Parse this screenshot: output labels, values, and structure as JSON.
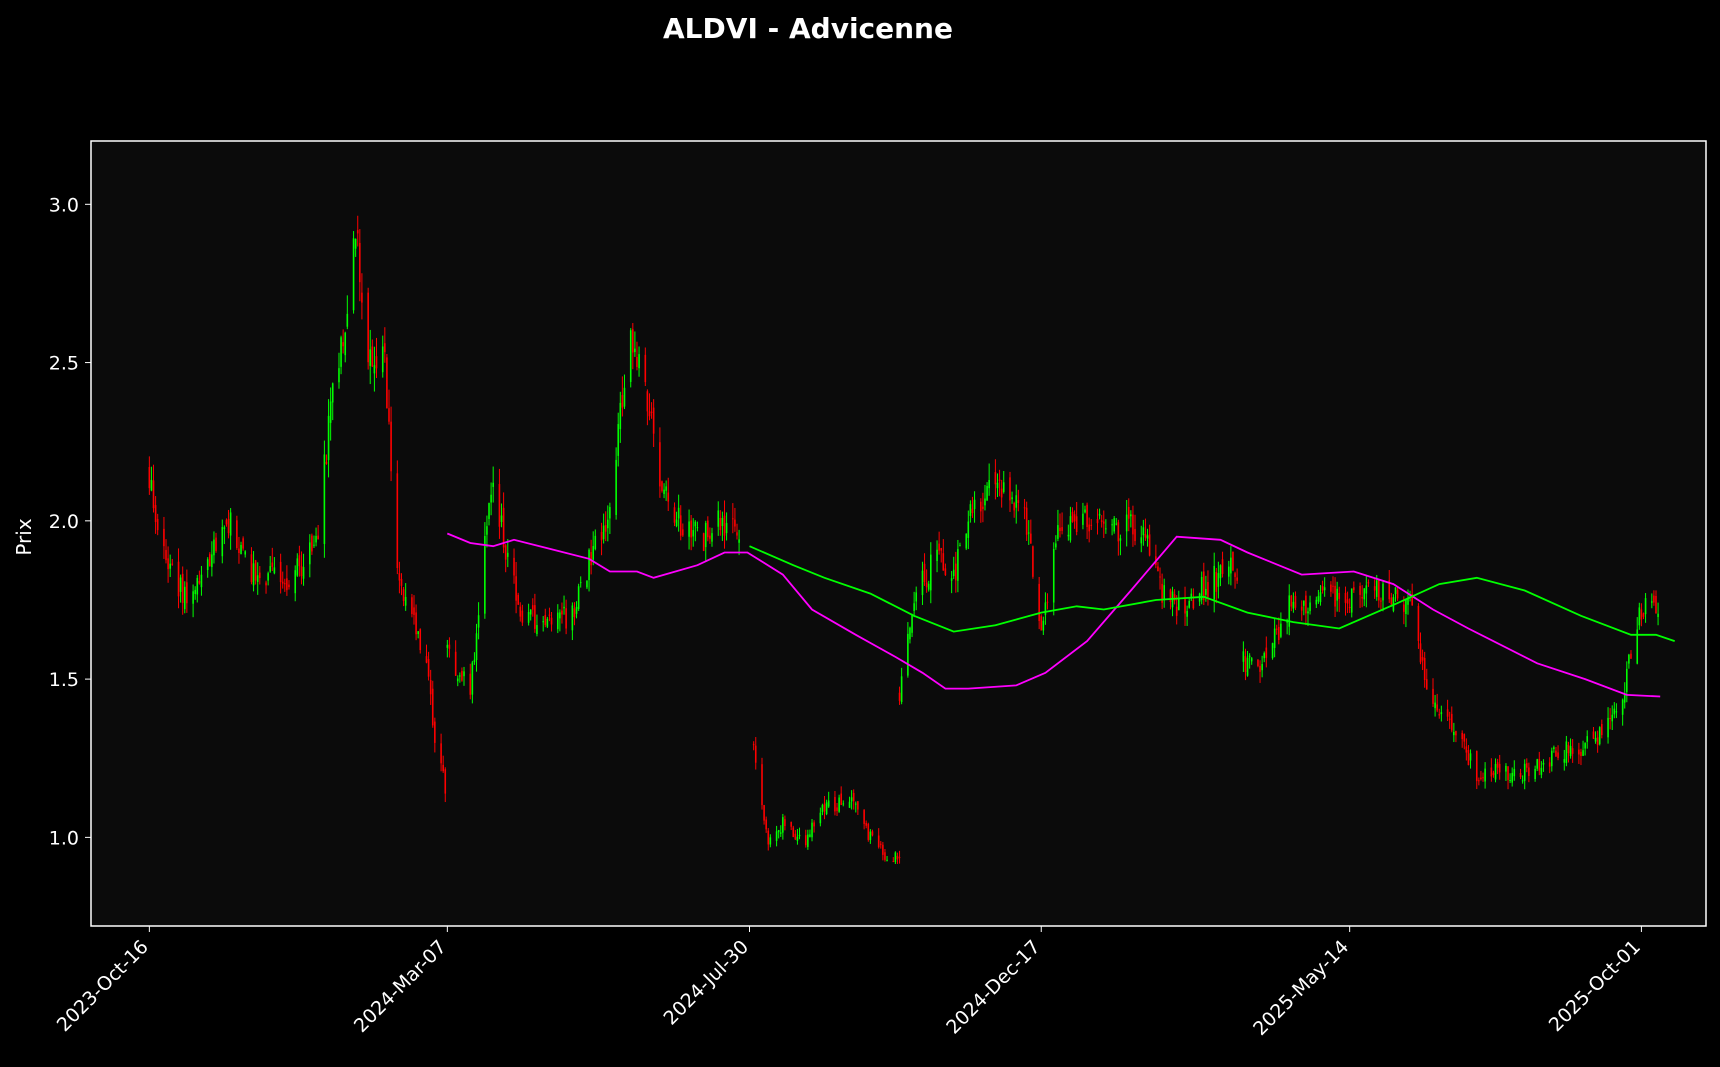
{
  "chart_data": {
    "type": "candlestick",
    "title": "ALDVI - Advicenne",
    "xlabel": "",
    "ylabel": "Prix",
    "ylim": [
      0.72,
      3.2
    ],
    "xlim": [
      "2023-09-18",
      "2025-11-01"
    ],
    "grid": false,
    "x_ticks": [
      {
        "date": "2023-10-16",
        "label": "2023-Oct-16"
      },
      {
        "date": "2024-03-07",
        "label": "2024-Mar-07"
      },
      {
        "date": "2024-07-30",
        "label": "2024-Jul-30"
      },
      {
        "date": "2024-12-17",
        "label": "2024-Dec-17"
      },
      {
        "date": "2025-05-14",
        "label": "2025-May-14"
      },
      {
        "date": "2025-10-01",
        "label": "2025-Oct-01"
      }
    ],
    "y_ticks": [
      {
        "value": 1.0,
        "label": "1.0"
      },
      {
        "value": 1.5,
        "label": "1.5"
      },
      {
        "value": 2.0,
        "label": "2.0"
      },
      {
        "value": 2.5,
        "label": "2.5"
      },
      {
        "value": 3.0,
        "label": "3.0"
      }
    ],
    "colors": {
      "up": "#00ff00",
      "down": "#ff0000",
      "ma_green": "#00ff00",
      "ma_magenta": "#ff00ff",
      "axes_bg": "#0b0b0b",
      "figure_bg": "#000000"
    },
    "segments": [
      {
        "start": "2023-10-16",
        "end": "2024-03-06",
        "anchors": [
          [
            "2023-10-16",
            2.15
          ],
          [
            "2023-10-23",
            1.88
          ],
          [
            "2023-11-03",
            1.74
          ],
          [
            "2023-11-13",
            1.85
          ],
          [
            "2023-11-22",
            2.02
          ],
          [
            "2023-12-01",
            1.86
          ],
          [
            "2023-12-12",
            1.82
          ],
          [
            "2023-12-22",
            1.8
          ],
          [
            "2024-01-05",
            1.95
          ],
          [
            "2024-01-12",
            2.45
          ],
          [
            "2024-01-17",
            2.6
          ],
          [
            "2024-01-23",
            2.92
          ],
          [
            "2024-01-29",
            2.55
          ],
          [
            "2024-02-06",
            2.5
          ],
          [
            "2024-02-12",
            1.85
          ],
          [
            "2024-02-20",
            1.68
          ],
          [
            "2024-02-26",
            1.55
          ],
          [
            "2024-03-01",
            1.32
          ],
          [
            "2024-03-06",
            1.16
          ]
        ]
      },
      {
        "start": "2024-03-07",
        "end": "2024-07-25",
        "anchors": [
          [
            "2024-03-07",
            1.6
          ],
          [
            "2024-03-18",
            1.46
          ],
          [
            "2024-03-28",
            2.1
          ],
          [
            "2024-04-04",
            1.92
          ],
          [
            "2024-04-11",
            1.68
          ],
          [
            "2024-04-25",
            1.68
          ],
          [
            "2024-05-06",
            1.7
          ],
          [
            "2024-05-14",
            1.88
          ],
          [
            "2024-05-24",
            2.05
          ],
          [
            "2024-06-03",
            2.6
          ],
          [
            "2024-06-10",
            2.45
          ],
          [
            "2024-06-17",
            2.1
          ],
          [
            "2024-06-27",
            1.98
          ],
          [
            "2024-07-08",
            1.95
          ],
          [
            "2024-07-18",
            2.0
          ],
          [
            "2024-07-25",
            1.98
          ]
        ]
      },
      {
        "start": "2024-08-01",
        "end": "2024-10-10",
        "anchors": [
          [
            "2024-08-01",
            1.3
          ],
          [
            "2024-08-08",
            0.98
          ],
          [
            "2024-08-15",
            1.04
          ],
          [
            "2024-08-26",
            0.99
          ],
          [
            "2024-09-04",
            1.1
          ],
          [
            "2024-09-16",
            1.12
          ],
          [
            "2024-09-26",
            1.0
          ],
          [
            "2024-10-03",
            0.94
          ],
          [
            "2024-10-10",
            0.93
          ]
        ]
      },
      {
        "start": "2024-10-10",
        "end": "2025-03-21",
        "anchors": [
          [
            "2024-10-10",
            1.45
          ],
          [
            "2024-10-17",
            1.75
          ],
          [
            "2024-10-28",
            1.9
          ],
          [
            "2024-11-05",
            1.82
          ],
          [
            "2024-11-14",
            2.05
          ],
          [
            "2024-11-21",
            2.1
          ],
          [
            "2024-12-02",
            2.08
          ],
          [
            "2024-12-10",
            2.0
          ],
          [
            "2024-12-17",
            1.68
          ],
          [
            "2024-12-26",
            1.98
          ],
          [
            "2025-01-08",
            2.02
          ],
          [
            "2025-01-20",
            1.98
          ],
          [
            "2025-02-03",
            1.98
          ],
          [
            "2025-02-12",
            1.78
          ],
          [
            "2025-02-25",
            1.72
          ],
          [
            "2025-03-06",
            1.8
          ],
          [
            "2025-03-21",
            1.85
          ]
        ]
      },
      {
        "start": "2025-03-24",
        "end": "2025-10-09",
        "anchors": [
          [
            "2025-03-24",
            1.55
          ],
          [
            "2025-04-02",
            1.55
          ],
          [
            "2025-04-14",
            1.72
          ],
          [
            "2025-04-24",
            1.75
          ],
          [
            "2025-05-08",
            1.75
          ],
          [
            "2025-05-20",
            1.78
          ],
          [
            "2025-06-02",
            1.78
          ],
          [
            "2025-06-12",
            1.74
          ],
          [
            "2025-06-23",
            1.4
          ],
          [
            "2025-07-03",
            1.36
          ],
          [
            "2025-07-14",
            1.2
          ],
          [
            "2025-07-24",
            1.22
          ],
          [
            "2025-08-04",
            1.2
          ],
          [
            "2025-08-14",
            1.24
          ],
          [
            "2025-08-25",
            1.27
          ],
          [
            "2025-09-08",
            1.3
          ],
          [
            "2025-09-22",
            1.45
          ],
          [
            "2025-09-30",
            1.72
          ],
          [
            "2025-10-09",
            1.72
          ]
        ]
      }
    ],
    "series": [
      {
        "color": "#ff00ff",
        "points": [
          [
            "2024-03-07",
            1.96
          ],
          [
            "2024-03-18",
            1.93
          ],
          [
            "2024-03-29",
            1.92
          ],
          [
            "2024-04-08",
            1.94
          ],
          [
            "2024-04-26",
            1.91
          ],
          [
            "2024-05-14",
            1.88
          ],
          [
            "2024-05-24",
            1.84
          ],
          [
            "2024-06-06",
            1.84
          ],
          [
            "2024-06-14",
            1.82
          ],
          [
            "2024-07-05",
            1.86
          ],
          [
            "2024-07-18",
            1.9
          ],
          [
            "2024-07-29",
            1.9
          ],
          [
            "2024-08-15",
            1.83
          ],
          [
            "2024-08-29",
            1.72
          ],
          [
            "2024-09-19",
            1.64
          ],
          [
            "2024-10-08",
            1.57
          ],
          [
            "2024-10-21",
            1.52
          ],
          [
            "2024-11-01",
            1.47
          ],
          [
            "2024-11-12",
            1.47
          ],
          [
            "2024-12-05",
            1.48
          ],
          [
            "2024-12-19",
            1.52
          ],
          [
            "2025-01-08",
            1.62
          ],
          [
            "2025-01-29",
            1.78
          ],
          [
            "2025-02-20",
            1.95
          ],
          [
            "2025-03-13",
            1.94
          ],
          [
            "2025-03-26",
            1.9
          ],
          [
            "2025-04-21",
            1.83
          ],
          [
            "2025-05-16",
            1.84
          ],
          [
            "2025-06-04",
            1.8
          ],
          [
            "2025-06-23",
            1.72
          ],
          [
            "2025-07-10",
            1.66
          ],
          [
            "2025-08-12",
            1.55
          ],
          [
            "2025-09-04",
            1.5
          ],
          [
            "2025-09-24",
            1.45
          ],
          [
            "2025-10-10",
            1.445
          ]
        ]
      },
      {
        "color": "#00ff00",
        "points": [
          [
            "2024-07-30",
            1.92
          ],
          [
            "2024-08-20",
            1.86
          ],
          [
            "2024-09-04",
            1.82
          ],
          [
            "2024-09-26",
            1.77
          ],
          [
            "2024-10-17",
            1.7
          ],
          [
            "2024-11-05",
            1.65
          ],
          [
            "2024-11-25",
            1.67
          ],
          [
            "2024-12-17",
            1.71
          ],
          [
            "2025-01-03",
            1.73
          ],
          [
            "2025-01-16",
            1.72
          ],
          [
            "2025-02-10",
            1.75
          ],
          [
            "2025-03-05",
            1.76
          ],
          [
            "2025-03-26",
            1.71
          ],
          [
            "2025-04-17",
            1.68
          ],
          [
            "2025-05-09",
            1.66
          ],
          [
            "2025-06-06",
            1.74
          ],
          [
            "2025-06-26",
            1.8
          ],
          [
            "2025-07-14",
            1.82
          ],
          [
            "2025-08-06",
            1.78
          ],
          [
            "2025-09-02",
            1.7
          ],
          [
            "2025-09-26",
            1.64
          ],
          [
            "2025-10-08",
            1.64
          ],
          [
            "2025-10-17",
            1.62
          ]
        ]
      }
    ]
  }
}
